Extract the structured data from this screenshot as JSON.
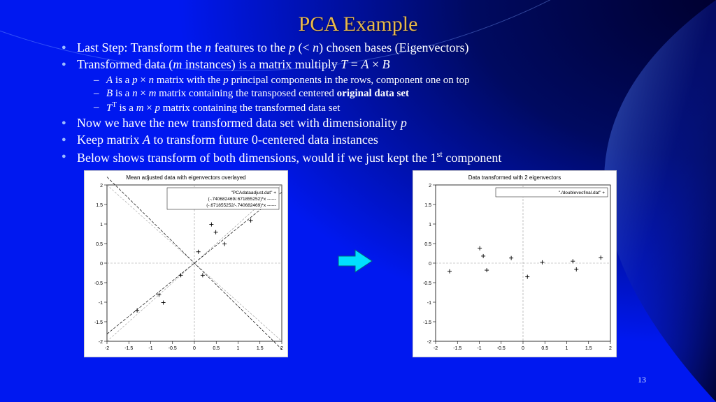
{
  "page_number": "13",
  "title": "PCA Example",
  "colors": {
    "title": "#e8b84a",
    "bullet_text": "#ffffff",
    "bullet_marker": "#9bbaff",
    "bg_primary": "#0018f0",
    "bg_dark": "#000a60",
    "arrow_fill": "#00e0ff",
    "arrow_stroke": "#006080",
    "chart_bg": "#ffffff",
    "chart_axis": "#000000",
    "chart_grid": "#bfbfbf",
    "chart_text": "#000000",
    "chart_point": "#000000"
  },
  "bullets": [
    {
      "html": "Last Step:  Transform the <span class='ital'>n</span> features to the <span class='ital'>p</span> (&lt; <span class='ital'>n</span>) chosen bases (Eigenvectors)"
    },
    {
      "html": "Transformed data (<span class='ital'>m</span> instances) is a matrix multiply <span class='ital'>T</span> =  <span class='ital'>A</span>  ×  <span class='ital'>B</span>",
      "sub": [
        {
          "html": "<span class='ital'>A</span> is a <span class='ital'>p</span> × <span class='ital'>n</span> matrix with the <span class='ital'>p</span> principal components in the rows, component one on top"
        },
        {
          "html": "<span class='ital'>B</span> is a <span class='ital'>n</span> × <span class='ital'>m</span> matrix containing the transposed centered <b>original data set</b>"
        },
        {
          "html": "<span class='ital'>T</span><span class='sup'>T</span> is a <span class='ital'>m</span> × <span class='ital'>p</span> matrix containing the transformed data set"
        }
      ]
    },
    {
      "html": "Now we have the new transformed data set with dimensionality <span class='ital'>p</span>"
    },
    {
      "html": "Keep matrix <span class='ital'>A</span> to transform future 0-centered data instances"
    },
    {
      "html": "Below shows transform of both dimensions, would if we just kept the 1<span class='sup'>st</span> component"
    }
  ],
  "chart_left": {
    "type": "scatter",
    "title": "Mean adjusted data with eigenvectors overlayed",
    "title_fontsize": 8,
    "xlim": [
      -2,
      2
    ],
    "ylim": [
      -2,
      2
    ],
    "tick_step": 0.5,
    "tick_fontsize": 7,
    "legend": [
      "\"PCAdataadjust.dat\"   +",
      "(-.740682469/.671855252)*x  ------",
      "(-.671855252/-.740682469)*x  ------"
    ],
    "legend_fontsize": 6.5,
    "points": [
      [
        0.69,
        0.49
      ],
      [
        -1.31,
        -1.21
      ],
      [
        0.39,
        0.99
      ],
      [
        0.09,
        0.29
      ],
      [
        1.29,
        1.09
      ],
      [
        0.49,
        0.79
      ],
      [
        0.19,
        -0.31
      ],
      [
        -0.81,
        -0.81
      ],
      [
        -0.31,
        -0.31
      ],
      [
        -0.71,
        -1.01
      ]
    ],
    "lines": [
      {
        "slope": -1.1025,
        "dash": true
      },
      {
        "slope": 0.9071,
        "dash": true
      }
    ]
  },
  "chart_right": {
    "type": "scatter",
    "title": "Data transformed with 2 eigenvectors",
    "title_fontsize": 8,
    "xlim": [
      -2,
      2
    ],
    "ylim": [
      -2,
      2
    ],
    "tick_step": 0.5,
    "tick_fontsize": 7,
    "legend": [
      "\"./doublevecfinal.dat\"   +"
    ],
    "legend_fontsize": 6.5,
    "points": [
      [
        -0.83,
        -0.18
      ],
      [
        1.78,
        0.14
      ],
      [
        -0.99,
        0.38
      ],
      [
        -0.27,
        0.13
      ],
      [
        -1.68,
        -0.21
      ],
      [
        -0.91,
        0.18
      ],
      [
        0.1,
        -0.35
      ],
      [
        1.14,
        0.05
      ],
      [
        0.44,
        0.02
      ],
      [
        1.22,
        -0.16
      ]
    ],
    "lines": []
  }
}
